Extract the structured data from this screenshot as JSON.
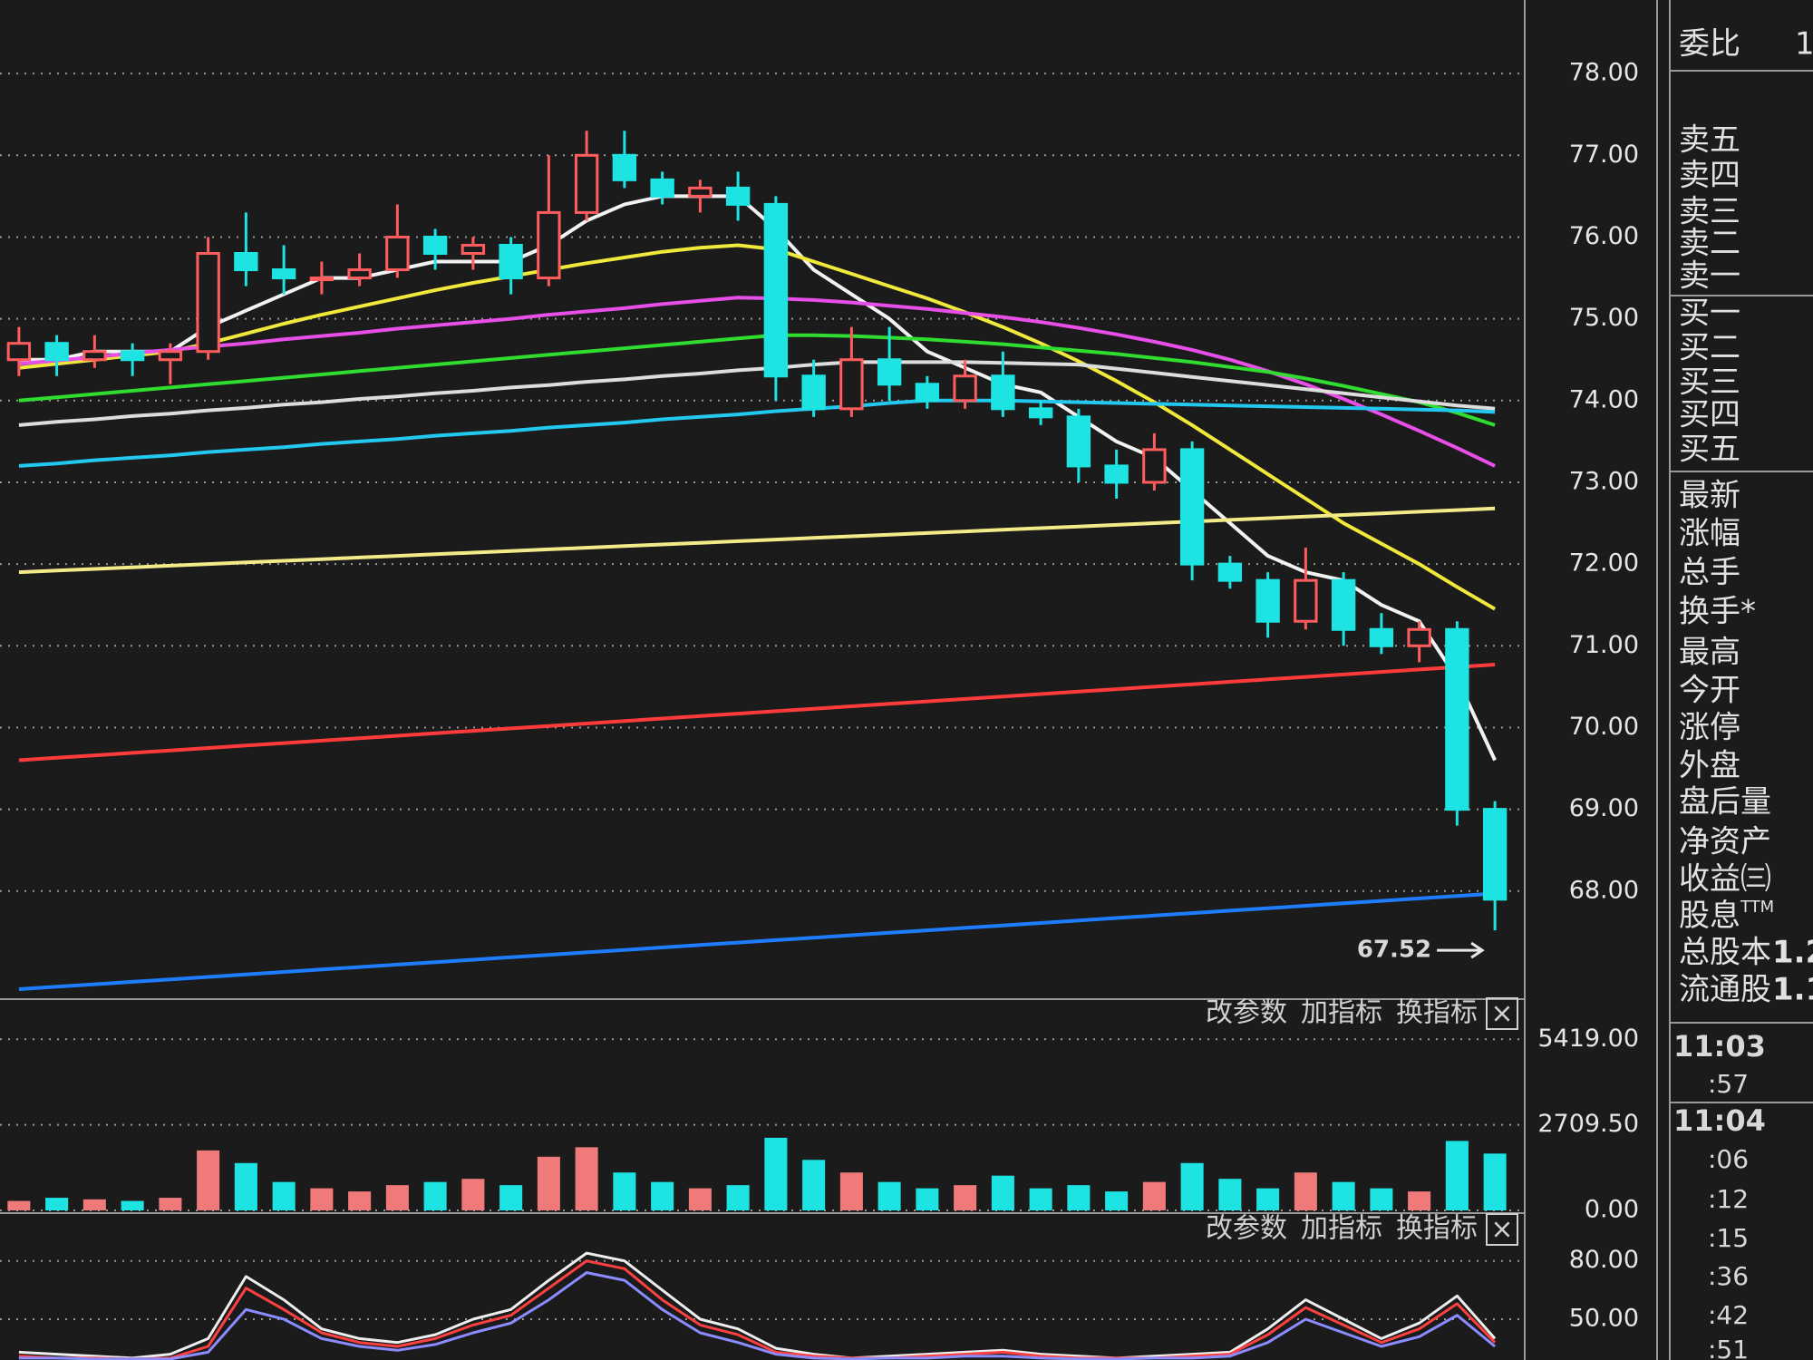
{
  "chart_data": [
    {
      "type": "candlestick",
      "open": [
        74.5,
        74.7,
        74.5,
        74.6,
        74.5,
        74.6,
        75.8,
        75.6,
        75.5,
        75.5,
        75.6,
        76.0,
        75.8,
        75.9,
        75.5,
        76.3,
        77.0,
        76.7,
        76.5,
        76.6,
        76.4,
        74.3,
        73.9,
        74.5,
        74.2,
        74.0,
        74.3,
        73.9,
        73.8,
        73.2,
        73.0,
        73.4,
        72.0,
        71.8,
        71.3,
        71.8,
        71.2,
        71.0,
        71.2,
        69.0
      ],
      "high": [
        74.9,
        74.8,
        74.8,
        74.7,
        74.7,
        76.0,
        76.3,
        75.9,
        75.7,
        75.8,
        76.4,
        76.1,
        76.0,
        76.0,
        77.0,
        77.3,
        77.3,
        76.8,
        76.7,
        76.8,
        76.5,
        74.5,
        74.9,
        74.9,
        74.3,
        74.5,
        74.6,
        74.0,
        73.9,
        73.4,
        73.6,
        73.5,
        72.1,
        71.9,
        72.2,
        71.9,
        71.4,
        71.3,
        71.3,
        69.1
      ],
      "low": [
        74.3,
        74.3,
        74.4,
        74.3,
        74.2,
        74.5,
        75.4,
        75.3,
        75.3,
        75.4,
        75.5,
        75.6,
        75.6,
        75.3,
        75.4,
        76.2,
        76.6,
        76.4,
        76.3,
        76.2,
        74.0,
        73.8,
        73.8,
        74.0,
        73.9,
        73.9,
        73.8,
        73.7,
        73.0,
        72.8,
        72.9,
        71.8,
        71.7,
        71.1,
        71.2,
        71.0,
        70.9,
        70.8,
        68.8,
        67.52
      ],
      "close": [
        74.7,
        74.5,
        74.6,
        74.5,
        74.6,
        75.8,
        75.6,
        75.5,
        75.5,
        75.6,
        76.0,
        75.8,
        75.9,
        75.5,
        76.3,
        77.0,
        76.7,
        76.5,
        76.6,
        76.4,
        74.3,
        73.9,
        74.5,
        74.2,
        74.0,
        74.3,
        73.9,
        73.8,
        73.2,
        73.0,
        73.4,
        72.0,
        71.8,
        71.3,
        71.8,
        71.2,
        71.0,
        71.2,
        69.0,
        67.9
      ],
      "up_color": "#ff5d5d",
      "down_color": "#1ee3e3",
      "series": [
        {
          "color": "#f2f2f2",
          "values": [
            74.5,
            74.5,
            74.6,
            74.6,
            74.6,
            74.9,
            75.1,
            75.3,
            75.5,
            75.5,
            75.6,
            75.7,
            75.7,
            75.7,
            75.9,
            76.2,
            76.4,
            76.5,
            76.5,
            76.5,
            76.1,
            75.6,
            75.3,
            75.0,
            74.6,
            74.4,
            74.2,
            74.1,
            73.8,
            73.5,
            73.3,
            72.9,
            72.5,
            72.1,
            71.9,
            71.8,
            71.5,
            71.3,
            70.6,
            69.6
          ]
        },
        {
          "color": "#f0e83a",
          "values": [
            74.4,
            74.45,
            74.5,
            74.55,
            74.6,
            74.7,
            74.82,
            74.94,
            75.05,
            75.15,
            75.25,
            75.35,
            75.44,
            75.52,
            75.6,
            75.68,
            75.75,
            75.82,
            75.87,
            75.9,
            75.85,
            75.7,
            75.55,
            75.4,
            75.25,
            75.08,
            74.9,
            74.7,
            74.48,
            74.24,
            73.98,
            73.7,
            73.4,
            73.1,
            72.8,
            72.5,
            72.25,
            72.0,
            71.72,
            71.45
          ]
        },
        {
          "color": "#e84ee8",
          "values": [
            74.45,
            74.49,
            74.53,
            74.58,
            74.62,
            74.66,
            74.7,
            74.75,
            74.79,
            74.83,
            74.88,
            74.92,
            74.96,
            75.0,
            75.05,
            75.09,
            75.13,
            75.18,
            75.22,
            75.26,
            75.25,
            75.23,
            75.2,
            75.16,
            75.12,
            75.07,
            75.02,
            74.96,
            74.89,
            74.81,
            74.72,
            74.62,
            74.5,
            74.36,
            74.2,
            74.02,
            73.83,
            73.63,
            73.42,
            73.2
          ]
        },
        {
          "color": "#2fdc2f",
          "values": [
            74.0,
            74.04,
            74.08,
            74.12,
            74.16,
            74.2,
            74.24,
            74.28,
            74.32,
            74.36,
            74.4,
            74.44,
            74.48,
            74.52,
            74.56,
            74.6,
            74.64,
            74.68,
            74.72,
            74.76,
            74.8,
            74.8,
            74.79,
            74.77,
            74.75,
            74.72,
            74.69,
            74.65,
            74.61,
            74.57,
            74.52,
            74.47,
            74.41,
            74.35,
            74.27,
            74.18,
            74.08,
            73.98,
            73.85,
            73.7
          ]
        },
        {
          "color": "#dddddd",
          "values": [
            73.7,
            73.74,
            73.77,
            73.81,
            73.84,
            73.88,
            73.91,
            73.95,
            73.98,
            74.02,
            74.05,
            74.09,
            74.12,
            74.16,
            74.19,
            74.23,
            74.26,
            74.3,
            74.33,
            74.37,
            74.4,
            74.44,
            74.47,
            74.47,
            74.47,
            74.47,
            74.46,
            74.45,
            74.44,
            74.39,
            74.34,
            74.29,
            74.24,
            74.19,
            74.14,
            74.09,
            74.04,
            73.99,
            73.94,
            73.9
          ]
        },
        {
          "color": "#22c8f0",
          "values": [
            73.2,
            73.23,
            73.27,
            73.3,
            73.33,
            73.37,
            73.4,
            73.43,
            73.47,
            73.5,
            73.53,
            73.57,
            73.6,
            73.63,
            73.67,
            73.7,
            73.73,
            73.77,
            73.8,
            73.83,
            73.87,
            73.9,
            73.93,
            73.97,
            74.0,
            74.0,
            74.0,
            73.99,
            73.98,
            73.97,
            73.96,
            73.95,
            73.94,
            73.93,
            73.92,
            73.91,
            73.9,
            73.89,
            73.88,
            73.86
          ]
        },
        {
          "color": "#f3eb8a",
          "values": [
            71.9,
            71.92,
            71.94,
            71.96,
            71.98,
            72.0,
            72.02,
            72.04,
            72.06,
            72.08,
            72.1,
            72.12,
            72.14,
            72.16,
            72.18,
            72.2,
            72.22,
            72.24,
            72.26,
            72.28,
            72.3,
            72.32,
            72.34,
            72.36,
            72.38,
            72.4,
            72.42,
            72.44,
            72.46,
            72.48,
            72.5,
            72.52,
            72.54,
            72.56,
            72.58,
            72.6,
            72.62,
            72.64,
            72.66,
            72.68
          ]
        },
        {
          "color": "#ff3b3b",
          "values": [
            69.6,
            69.63,
            69.66,
            69.69,
            69.72,
            69.75,
            69.78,
            69.81,
            69.84,
            69.87,
            69.9,
            69.93,
            69.96,
            69.99,
            70.02,
            70.05,
            70.08,
            70.11,
            70.14,
            70.17,
            70.2,
            70.23,
            70.26,
            70.29,
            70.32,
            70.35,
            70.38,
            70.41,
            70.44,
            70.47,
            70.5,
            70.53,
            70.56,
            70.59,
            70.62,
            70.65,
            70.68,
            70.71,
            70.74,
            70.77
          ]
        },
        {
          "color": "#1e7dff",
          "values": [
            66.8,
            66.83,
            66.86,
            66.89,
            66.92,
            66.95,
            66.98,
            67.01,
            67.04,
            67.07,
            67.1,
            67.13,
            67.16,
            67.19,
            67.22,
            67.25,
            67.28,
            67.31,
            67.34,
            67.37,
            67.4,
            67.43,
            67.46,
            67.49,
            67.52,
            67.55,
            67.58,
            67.61,
            67.64,
            67.67,
            67.7,
            67.73,
            67.76,
            67.79,
            67.82,
            67.85,
            67.88,
            67.91,
            67.94,
            67.97
          ]
        }
      ],
      "ylim": [
        66.7,
        78.9
      ],
      "yticks": [
        {
          "value": 68,
          "label": "68.00"
        },
        {
          "value": 69,
          "label": "69.00"
        },
        {
          "value": 70,
          "label": "70.00"
        },
        {
          "value": 71,
          "label": "71.00"
        },
        {
          "value": 72,
          "label": "72.00"
        },
        {
          "value": 73,
          "label": "73.00"
        },
        {
          "value": 74,
          "label": "74.00"
        },
        {
          "value": 75,
          "label": "75.00"
        },
        {
          "value": 76,
          "label": "76.00"
        },
        {
          "value": 77,
          "label": "77.00"
        },
        {
          "value": 78,
          "label": "78.00"
        }
      ],
      "grid": true,
      "annotation": "67.52"
    },
    {
      "type": "bar",
      "values": [
        300,
        400,
        350,
        300,
        400,
        1900,
        1500,
        900,
        700,
        600,
        800,
        900,
        1000,
        800,
        1700,
        2000,
        1200,
        900,
        700,
        800,
        2300,
        1600,
        1200,
        900,
        700,
        800,
        1100,
        700,
        800,
        600,
        900,
        1500,
        1000,
        700,
        1200,
        900,
        700,
        600,
        2200,
        1800
      ],
      "ylim": [
        0,
        5600
      ],
      "yticks": [
        {
          "value": 0,
          "label": "0.00"
        },
        {
          "value": 2709.5,
          "label": "2709.50"
        },
        {
          "value": 5419,
          "label": "5419.00"
        }
      ],
      "grid": true
    },
    {
      "type": "line",
      "series": [
        {
          "color": "#eeeeee",
          "values": [
            33,
            32,
            31,
            30,
            32,
            40,
            72,
            60,
            45,
            40,
            38,
            42,
            50,
            55,
            70,
            84,
            80,
            65,
            50,
            45,
            35,
            32,
            30,
            31,
            32,
            33,
            34,
            32,
            31,
            30,
            31,
            32,
            33,
            45,
            60,
            50,
            40,
            48,
            62,
            40
          ]
        },
        {
          "color": "#ff4040",
          "values": [
            31,
            30,
            30,
            29.5,
            30,
            36,
            66,
            55,
            43,
            38,
            36,
            40,
            47,
            52,
            66,
            80,
            76,
            60,
            47,
            42,
            33,
            31,
            30,
            30,
            31,
            32,
            33,
            31,
            30,
            30,
            30,
            31,
            32,
            42,
            56,
            47,
            38,
            45,
            58,
            38
          ]
        },
        {
          "color": "#8a8cff",
          "values": [
            30,
            30,
            29.5,
            29.5,
            29.5,
            33,
            55,
            50,
            40,
            36,
            34,
            37,
            43,
            48,
            60,
            74,
            70,
            55,
            43,
            38,
            32,
            30,
            29.5,
            30,
            30,
            31,
            31,
            30,
            29.5,
            29.5,
            30,
            30,
            31,
            38,
            50,
            43,
            36,
            41,
            52,
            36
          ]
        }
      ],
      "ylim": [
        29,
        85
      ],
      "yticks": [
        {
          "value": 50,
          "label": "50.00"
        },
        {
          "value": 80,
          "label": "80.00"
        }
      ],
      "grid": true
    }
  ],
  "toolbars": [
    {
      "buttons": [
        "改参数",
        "加指标",
        "换指标"
      ],
      "close": "×"
    },
    {
      "buttons": [
        "改参数",
        "加指标",
        "换指标"
      ],
      "close": "×"
    }
  ],
  "side_panel": {
    "ratio": {
      "label": "委比",
      "value": "1"
    },
    "order_book": [
      "卖五",
      "卖四",
      "卖三",
      "卖二",
      "卖一",
      "买一",
      "买二",
      "买三",
      "买四",
      "买五"
    ],
    "quote_labels": [
      "最新",
      "涨幅",
      "总手",
      "换手*",
      "最高",
      "今开",
      "涨停",
      "外盘",
      "盘后量",
      "净资产",
      "收益㈢"
    ],
    "dividend": {
      "label": "股息",
      "sup": "TTM"
    },
    "shares": [
      {
        "label": "总股本",
        "value": "1.2"
      },
      {
        "label": "流通股",
        "value": "1.1"
      }
    ],
    "times": [
      "11:03",
      ":57",
      "11:04",
      ":06",
      ":12",
      ":15",
      ":36",
      ":42",
      ":51"
    ]
  }
}
